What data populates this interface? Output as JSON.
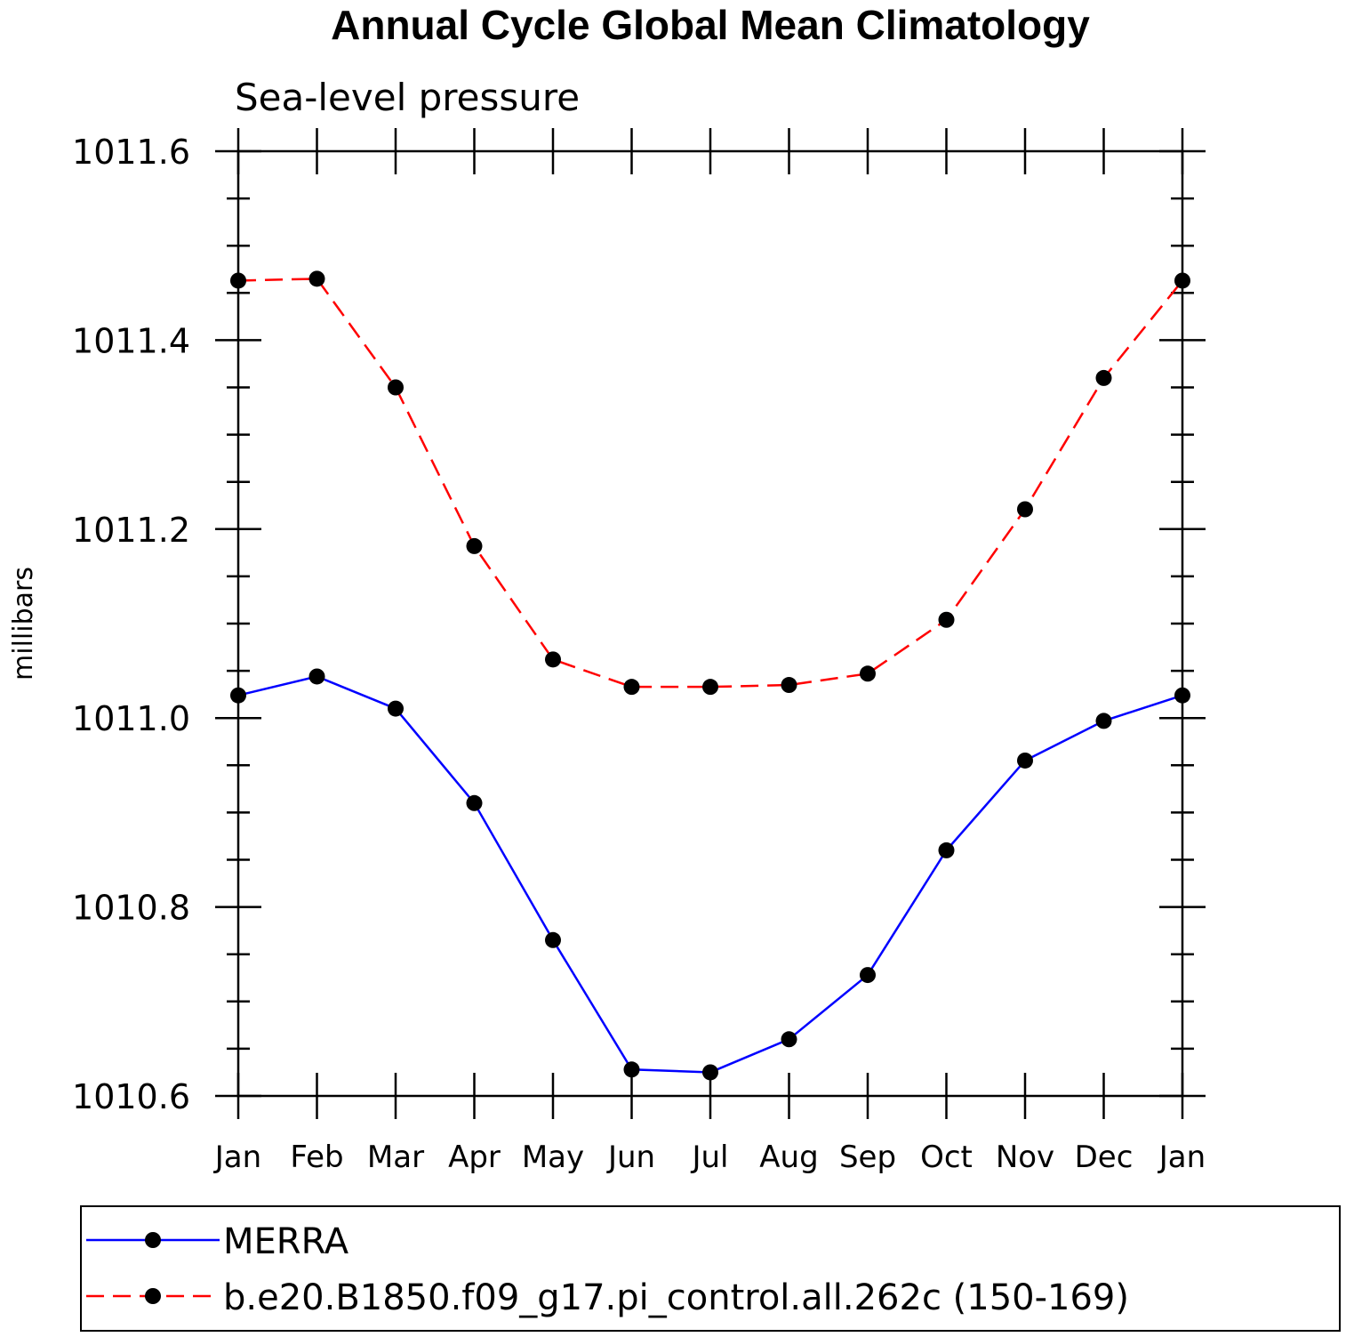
{
  "chart_data": {
    "type": "line",
    "title": "Annual Cycle Global Mean Climatology",
    "subtitle": "Sea-level pressure",
    "ylabel": "millibars",
    "xlabel": "",
    "categories": [
      "Jan",
      "Feb",
      "Mar",
      "Apr",
      "May",
      "Jun",
      "Jul",
      "Aug",
      "Sep",
      "Oct",
      "Nov",
      "Dec",
      "Jan"
    ],
    "ylim": [
      1010.6,
      1011.6
    ],
    "yticks": [
      "1010.6",
      "1010.8",
      "1011.0",
      "1011.2",
      "1011.4",
      "1011.6"
    ],
    "grid": false,
    "legend_position": "bottom",
    "series": [
      {
        "name": "MERRA",
        "color": "#0000ff",
        "dash": "solid",
        "marker": "filled-circle",
        "values": [
          1011.024,
          1011.044,
          1011.01,
          1010.91,
          1010.765,
          1010.628,
          1010.625,
          1010.66,
          1010.728,
          1010.86,
          1010.955,
          1010.997,
          1011.024
        ]
      },
      {
        "name": "b.e20.B1850.f09_g17.pi_control.all.262c (150-169)",
        "color": "#ff0000",
        "dash": "dashed",
        "marker": "filled-circle",
        "values": [
          1011.463,
          1011.465,
          1011.35,
          1011.182,
          1011.062,
          1011.033,
          1011.033,
          1011.035,
          1011.047,
          1011.104,
          1011.221,
          1011.36,
          1011.463
        ]
      }
    ]
  }
}
